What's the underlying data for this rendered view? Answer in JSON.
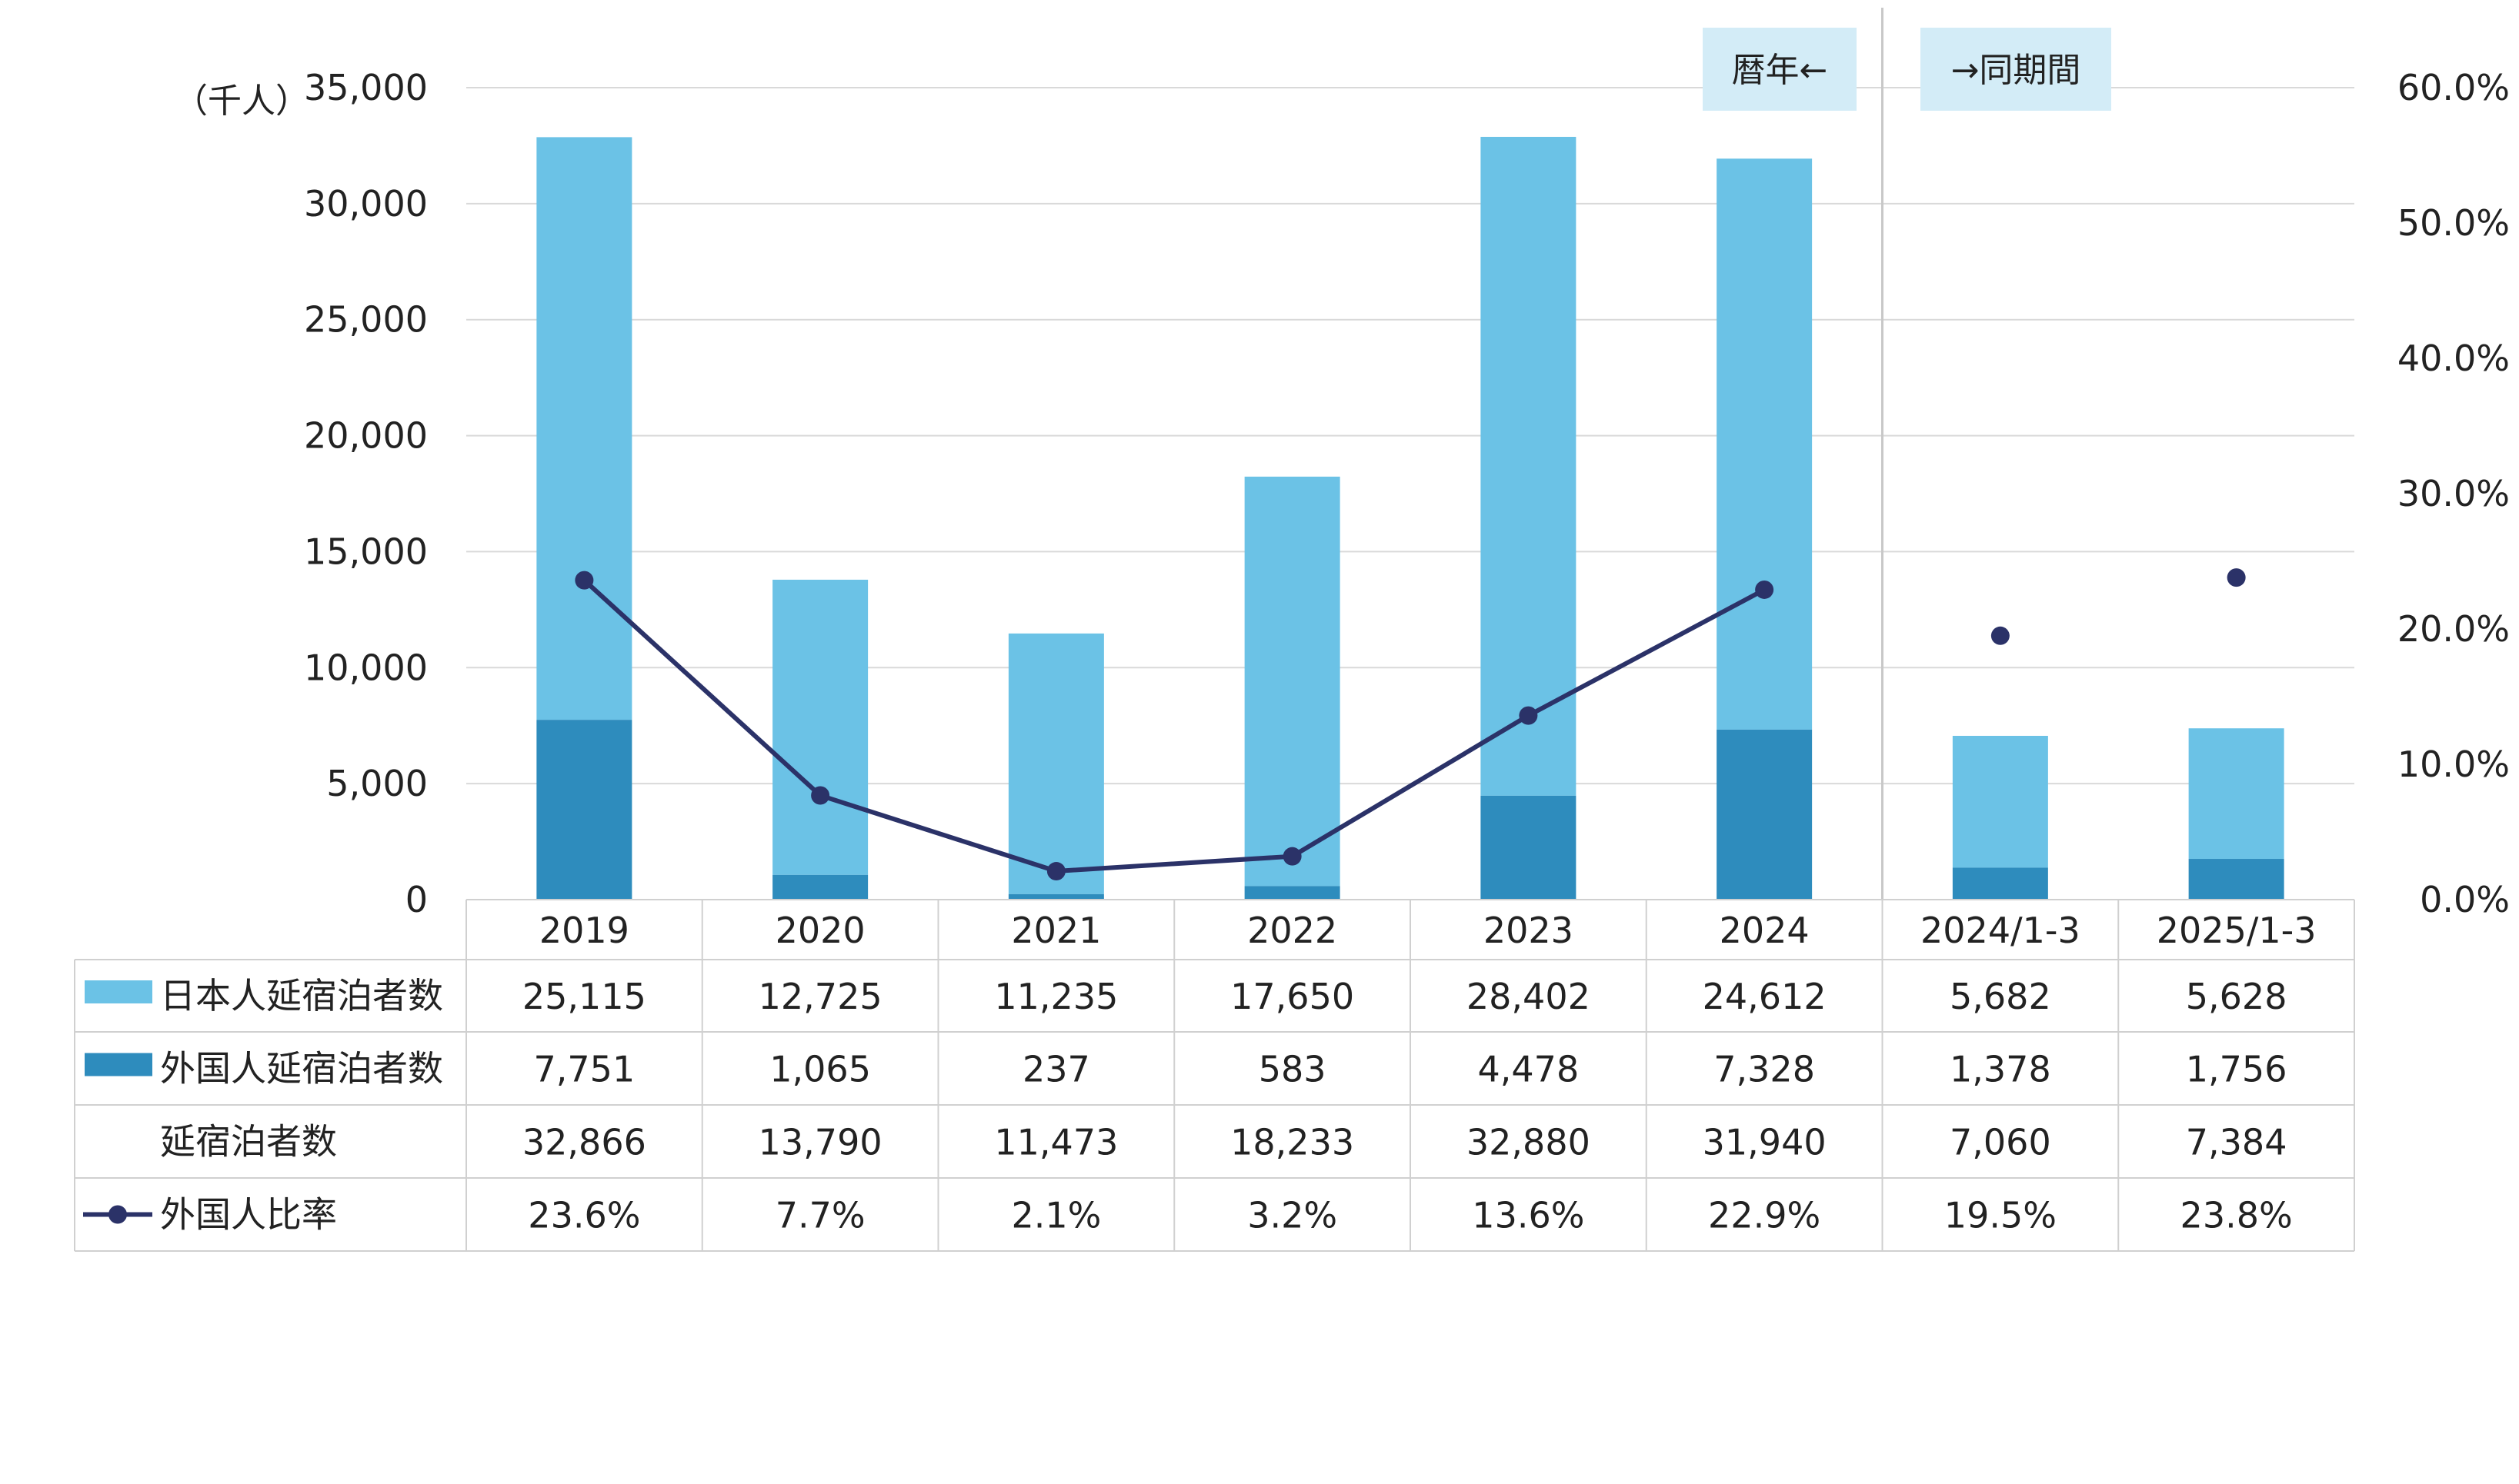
{
  "chart_data": {
    "type": "bar",
    "stacked": true,
    "unit_label": "（千人）",
    "categories": [
      "2019",
      "2020",
      "2021",
      "2022",
      "2023",
      "2024",
      "2024/1-3",
      "2025/1-3"
    ],
    "series": [
      {
        "name": "日本人延宿泊者数",
        "kind": "bar",
        "color": "#6bc2e6",
        "values": [
          25115,
          12725,
          11235,
          17650,
          28402,
          24612,
          5682,
          5628
        ],
        "labels": [
          "25,115",
          "12,725",
          "11,235",
          "17,650",
          "28,402",
          "24,612",
          "5,682",
          "5,628"
        ]
      },
      {
        "name": "外国人延宿泊者数",
        "kind": "bar",
        "color": "#2e8cbd",
        "values": [
          7751,
          1065,
          237,
          583,
          4478,
          7328,
          1378,
          1756
        ],
        "labels": [
          "7,751",
          "1,065",
          "237",
          "583",
          "4,478",
          "7,328",
          "1,378",
          "1,756"
        ]
      },
      {
        "name": "延宿泊者数",
        "kind": "total",
        "values": [
          32866,
          13790,
          11473,
          18233,
          32880,
          31940,
          7060,
          7384
        ],
        "labels": [
          "32,866",
          "13,790",
          "11,473",
          "18,233",
          "32,880",
          "31,940",
          "7,060",
          "7,384"
        ]
      },
      {
        "name": "外国人比率",
        "kind": "line",
        "axis": "right",
        "color": "#2b3268",
        "values": [
          23.6,
          7.7,
          2.1,
          3.2,
          13.6,
          22.9,
          19.5,
          23.8
        ],
        "labels": [
          "23.6%",
          "7.7%",
          "2.1%",
          "3.2%",
          "13.6%",
          "22.9%",
          "19.5%",
          "23.8%"
        ]
      }
    ],
    "line_connected_count": 6,
    "y_left": {
      "min": 0,
      "max": 35000,
      "ticks": [
        "0",
        "5,000",
        "10,000",
        "15,000",
        "20,000",
        "25,000",
        "30,000",
        "35,000"
      ]
    },
    "y_right": {
      "min": 0,
      "max": 60,
      "ticks": [
        "0.0%",
        "10.0%",
        "20.0%",
        "30.0%",
        "40.0%",
        "50.0%",
        "60.0%"
      ]
    },
    "grid": true,
    "annotations": [
      {
        "text": "暦年←",
        "background": "#d3ecf7"
      },
      {
        "text": "→同期間",
        "background": "#d3ecf7"
      }
    ],
    "gridline_color": "#d9d9d9",
    "divider_color": "#c8c8c8"
  }
}
